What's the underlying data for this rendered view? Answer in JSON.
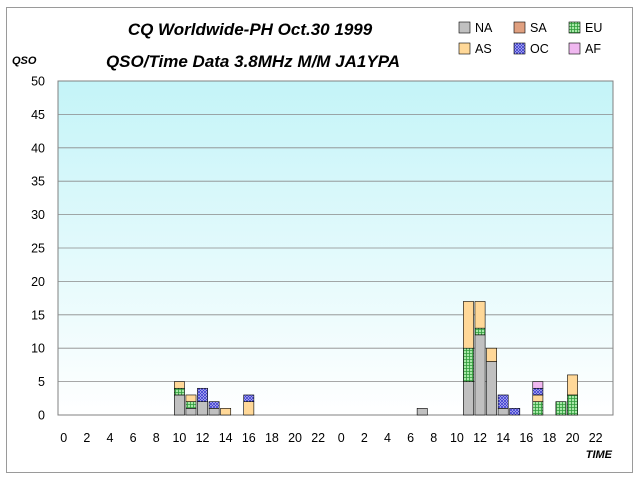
{
  "chart_data": {
    "type": "bar",
    "stacked": true,
    "title": "CQ Worldwide-PH Oct.30 1999",
    "subtitle": "QSO/Time Data 3.8MHz M/M JA1YPA",
    "ylabel": "QSO",
    "xlabel": "TIME",
    "ylim": [
      0,
      50
    ],
    "yticks": [
      0,
      5,
      10,
      15,
      20,
      25,
      30,
      35,
      40,
      45,
      50
    ],
    "grid": true,
    "legend_position": "top-right",
    "categories": [
      "0",
      "1",
      "2",
      "3",
      "4",
      "5",
      "6",
      "7",
      "8",
      "9",
      "10",
      "11",
      "12",
      "13",
      "14",
      "15",
      "16",
      "17",
      "18",
      "19",
      "20",
      "21",
      "22",
      "23",
      "0",
      "1",
      "2",
      "3",
      "4",
      "5",
      "6",
      "7",
      "8",
      "9",
      "10",
      "11",
      "12",
      "13",
      "14",
      "15",
      "16",
      "17",
      "18",
      "19",
      "20",
      "21",
      "22",
      "23"
    ],
    "tick_labels": [
      "0",
      "2",
      "4",
      "6",
      "8",
      "10",
      "12",
      "14",
      "16",
      "18",
      "20",
      "22",
      "0",
      "2",
      "4",
      "6",
      "8",
      "10",
      "12",
      "14",
      "16",
      "18",
      "20",
      "22"
    ],
    "series": [
      {
        "name": "NA",
        "color": "#c0c0c0",
        "pattern": "solid",
        "values": [
          0,
          0,
          0,
          0,
          0,
          0,
          0,
          0,
          0,
          0,
          3,
          1,
          2,
          1,
          0,
          0,
          0,
          0,
          0,
          0,
          0,
          0,
          0,
          0,
          0,
          0,
          0,
          0,
          0,
          0,
          0,
          1,
          0,
          0,
          0,
          5,
          12,
          8,
          1,
          0,
          0,
          0,
          0,
          0,
          0,
          0,
          0,
          0
        ]
      },
      {
        "name": "SA",
        "color": "#e0a080",
        "pattern": "solid",
        "values": [
          0,
          0,
          0,
          0,
          0,
          0,
          0,
          0,
          0,
          0,
          0,
          0,
          0,
          0,
          0,
          0,
          0,
          0,
          0,
          0,
          0,
          0,
          0,
          0,
          0,
          0,
          0,
          0,
          0,
          0,
          0,
          0,
          0,
          0,
          0,
          0,
          0,
          0,
          0,
          0,
          0,
          0,
          0,
          0,
          0,
          0,
          0,
          0
        ]
      },
      {
        "name": "EU",
        "color": "#a8e8a8",
        "pattern": "grid",
        "values": [
          0,
          0,
          0,
          0,
          0,
          0,
          0,
          0,
          0,
          0,
          1,
          1,
          0,
          0,
          0,
          0,
          0,
          0,
          0,
          0,
          0,
          0,
          0,
          0,
          0,
          0,
          0,
          0,
          0,
          0,
          0,
          0,
          0,
          0,
          0,
          5,
          1,
          0,
          0,
          0,
          0,
          2,
          0,
          2,
          3,
          0,
          0,
          0
        ]
      },
      {
        "name": "AS",
        "color": "#ffd898",
        "pattern": "solid",
        "values": [
          0,
          0,
          0,
          0,
          0,
          0,
          0,
          0,
          0,
          0,
          1,
          1,
          0,
          0,
          1,
          0,
          2,
          0,
          0,
          0,
          0,
          0,
          0,
          0,
          0,
          0,
          0,
          0,
          0,
          0,
          0,
          0,
          0,
          0,
          0,
          7,
          4,
          2,
          0,
          0,
          0,
          1,
          0,
          0,
          3,
          0,
          0,
          0
        ]
      },
      {
        "name": "OC",
        "color": "#b8b8f0",
        "pattern": "cross",
        "values": [
          0,
          0,
          0,
          0,
          0,
          0,
          0,
          0,
          0,
          0,
          0,
          0,
          2,
          1,
          0,
          0,
          1,
          0,
          0,
          0,
          0,
          0,
          0,
          0,
          0,
          0,
          0,
          0,
          0,
          0,
          0,
          0,
          0,
          0,
          0,
          0,
          0,
          0,
          2,
          1,
          0,
          1,
          0,
          0,
          0,
          0,
          0,
          0
        ]
      },
      {
        "name": "AF",
        "color": "#f0b8f0",
        "pattern": "solid",
        "values": [
          0,
          0,
          0,
          0,
          0,
          0,
          0,
          0,
          0,
          0,
          0,
          0,
          0,
          0,
          0,
          0,
          0,
          0,
          0,
          0,
          0,
          0,
          0,
          0,
          0,
          0,
          0,
          0,
          0,
          0,
          0,
          0,
          0,
          0,
          0,
          0,
          0,
          0,
          0,
          0,
          0,
          1,
          0,
          0,
          0,
          0,
          0,
          0
        ]
      }
    ]
  }
}
